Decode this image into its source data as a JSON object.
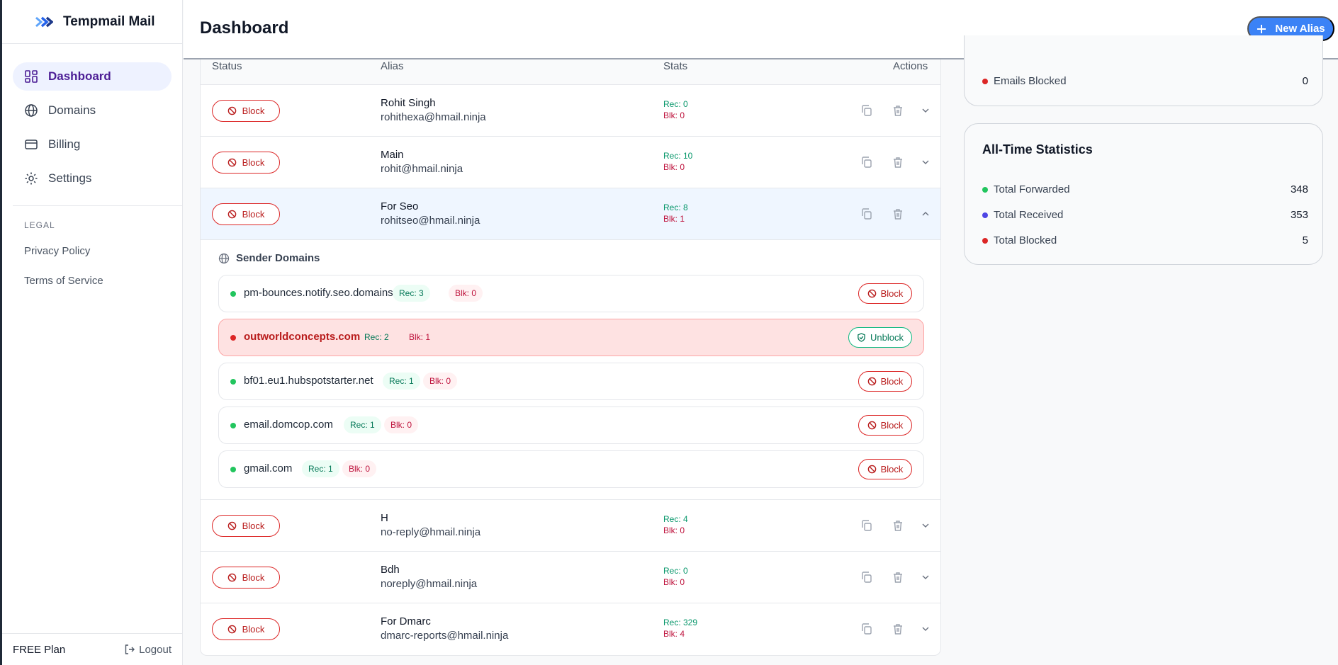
{
  "app": {
    "name": "Tempmail Mail"
  },
  "sidebar": {
    "nav": [
      {
        "label": "Dashboard",
        "icon": "dashboard-icon",
        "active": true
      },
      {
        "label": "Domains",
        "icon": "globe-icon"
      },
      {
        "label": "Billing",
        "icon": "credit-card-icon"
      },
      {
        "label": "Settings",
        "icon": "gear-icon"
      }
    ],
    "legal_heading": "LEGAL",
    "legal_links": [
      "Privacy Policy",
      "Terms of Service"
    ],
    "plan": "FREE Plan",
    "logout": "Logout"
  },
  "header": {
    "title": "Dashboard",
    "new_alias": "New Alias"
  },
  "table": {
    "headers": {
      "status": "Status",
      "alias": "Alias",
      "stats": "Stats",
      "actions": "Actions"
    },
    "block_label": "Block",
    "rows": [
      {
        "name": "Rohit Singh",
        "email": "rohithexa@hmail.ninja",
        "rec": "Rec: 0",
        "blk": "Blk: 0"
      },
      {
        "name": "Main",
        "email": "rohit@hmail.ninja",
        "rec": "Rec: 10",
        "blk": "Blk: 0"
      },
      {
        "name": "For Seo",
        "email": "rohitseo@hmail.ninja",
        "rec": "Rec: 8",
        "blk": "Blk: 1"
      },
      {
        "name": "H",
        "email": "no-reply@hmail.ninja",
        "rec": "Rec: 4",
        "blk": "Blk: 0"
      },
      {
        "name": "Bdh",
        "email": "noreply@hmail.ninja",
        "rec": "Rec: 0",
        "blk": "Blk: 0"
      },
      {
        "name": "For Dmarc",
        "email": "dmarc-reports@hmail.ninja",
        "rec": "Rec: 329",
        "blk": "Blk: 4"
      }
    ]
  },
  "sender_domains": {
    "heading": "Sender Domains",
    "block_label": "Block",
    "unblock_label": "Unblock",
    "items": [
      {
        "domain": "pm-bounces.notify.seo.domains",
        "rec": "Rec: 3",
        "blk": "Blk: 0",
        "blocked": false
      },
      {
        "domain": "outworldconcepts.com",
        "rec": "Rec: 2",
        "blk": "Blk: 1",
        "blocked": true
      },
      {
        "domain": "bf01.eu1.hubspotstarter.net",
        "rec": "Rec: 1",
        "blk": "Blk: 0",
        "blocked": false
      },
      {
        "domain": "email.domcop.com",
        "rec": "Rec: 1",
        "blk": "Blk: 0",
        "blocked": false
      },
      {
        "domain": "gmail.com",
        "rec": "Rec: 1",
        "blk": "Blk: 0",
        "blocked": false
      }
    ]
  },
  "stats_card_top": {
    "label": "Emails Blocked",
    "value": "0"
  },
  "all_time": {
    "title": "All-Time Statistics",
    "items": [
      {
        "label": "Total Forwarded",
        "value": "348",
        "color": "#22c55e"
      },
      {
        "label": "Total Received",
        "value": "353",
        "color": "#4f46e5"
      },
      {
        "label": "Total Blocked",
        "value": "5",
        "color": "#dc2626"
      }
    ]
  },
  "colors": {
    "accent": "#3b82f6",
    "danger": "#dc2626",
    "success": "#10b981"
  }
}
